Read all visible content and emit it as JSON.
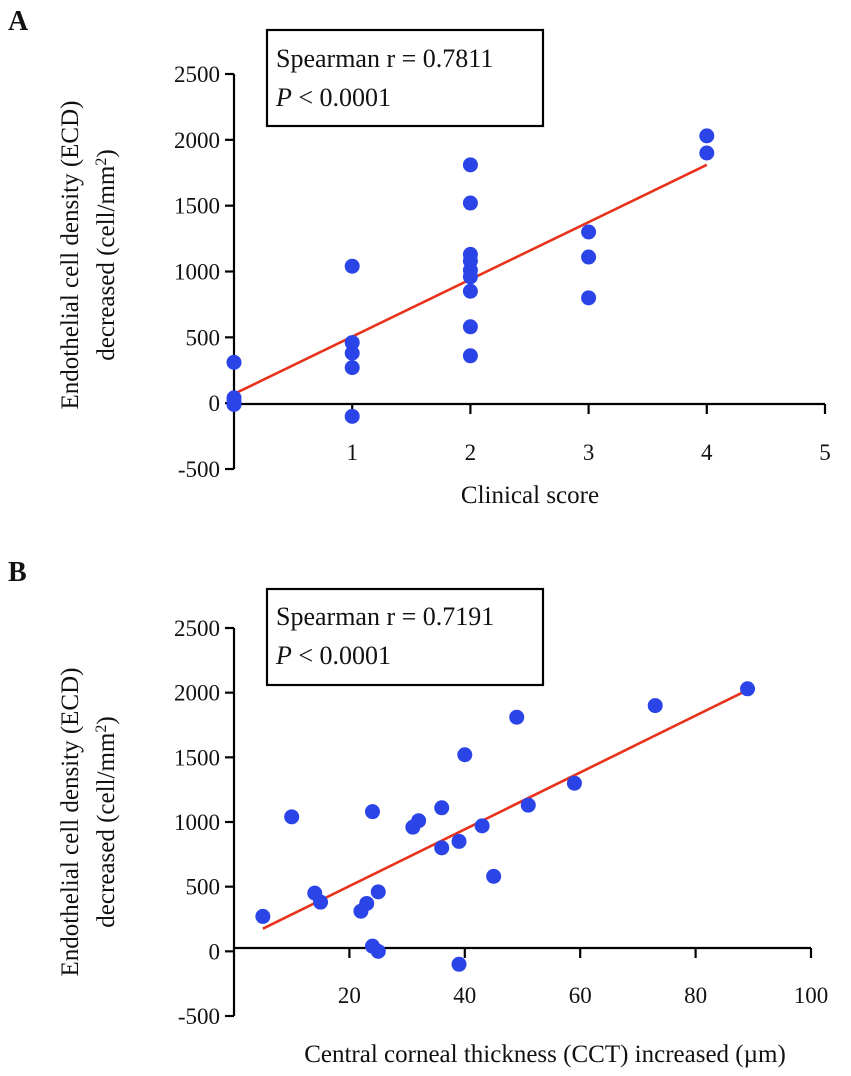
{
  "chart_data": [
    {
      "type": "scatter",
      "panel_label": "A",
      "title": "",
      "xlabel": "Clinical score",
      "ylabel_line1": "Endothelial cell density (ECD)",
      "ylabel_line2_prefix": "decreased (cell/mm",
      "ylabel_line2_sup": "2",
      "ylabel_line2_suffix": ")",
      "xlim": [
        0,
        5
      ],
      "ylim": [
        -500,
        2500
      ],
      "xticks": [
        1,
        2,
        3,
        4,
        5
      ],
      "yticks": [
        -500,
        0,
        500,
        1000,
        1500,
        2000,
        2500
      ],
      "xtick_labels": [
        "1",
        "2",
        "3",
        "4",
        "5"
      ],
      "ytick_labels": [
        "-500",
        "0",
        "500",
        "1000",
        "1500",
        "2000",
        "2500"
      ],
      "grid": false,
      "annotation": {
        "line1": "Spearman r = 0.7811",
        "p_symbol": "P",
        "p_rest": " < 0.0001",
        "placement": "top-left"
      },
      "points": [
        {
          "x": 0,
          "y": 310
        },
        {
          "x": 0,
          "y": 40
        },
        {
          "x": 0,
          "y": 10
        },
        {
          "x": 0,
          "y": -10
        },
        {
          "x": 1,
          "y": 1040
        },
        {
          "x": 1,
          "y": 460
        },
        {
          "x": 1,
          "y": 380
        },
        {
          "x": 1,
          "y": 270
        },
        {
          "x": 1,
          "y": -100
        },
        {
          "x": 2,
          "y": 1810
        },
        {
          "x": 2,
          "y": 1520
        },
        {
          "x": 2,
          "y": 1130
        },
        {
          "x": 2,
          "y": 1080
        },
        {
          "x": 2,
          "y": 1010
        },
        {
          "x": 2,
          "y": 960
        },
        {
          "x": 2,
          "y": 850
        },
        {
          "x": 2,
          "y": 580
        },
        {
          "x": 2,
          "y": 360
        },
        {
          "x": 3,
          "y": 1300
        },
        {
          "x": 3,
          "y": 1110
        },
        {
          "x": 3,
          "y": 800
        },
        {
          "x": 4,
          "y": 2030
        },
        {
          "x": 4,
          "y": 1900
        }
      ],
      "fit_line": {
        "x0": 0,
        "y0": 70,
        "x1": 4,
        "y1": 1810
      }
    },
    {
      "type": "scatter",
      "panel_label": "B",
      "title": "",
      "xlabel": "Central corneal thickness (CCT) increased (µm)",
      "ylabel_line1": "Endothelial cell density (ECD)",
      "ylabel_line2_prefix": "decreased (cell/mm",
      "ylabel_line2_sup": "2",
      "ylabel_line2_suffix": ")",
      "xlim": [
        0,
        100
      ],
      "ylim": [
        -500,
        2500
      ],
      "xticks": [
        20,
        40,
        60,
        80,
        100
      ],
      "yticks": [
        -500,
        0,
        500,
        1000,
        1500,
        2000,
        2500
      ],
      "xtick_labels": [
        "20",
        "40",
        "60",
        "80",
        "100"
      ],
      "ytick_labels": [
        "-500",
        "0",
        "500",
        "1000",
        "1500",
        "2000",
        "2500"
      ],
      "grid": false,
      "annotation": {
        "line1": "Spearman r = 0.7191",
        "p_symbol": "P",
        "p_rest": " < 0.0001",
        "placement": "top-left"
      },
      "points": [
        {
          "x": 5,
          "y": 270
        },
        {
          "x": 10,
          "y": 1040
        },
        {
          "x": 14,
          "y": 450
        },
        {
          "x": 15,
          "y": 380
        },
        {
          "x": 22,
          "y": 310
        },
        {
          "x": 23,
          "y": 370
        },
        {
          "x": 24,
          "y": 1080
        },
        {
          "x": 24,
          "y": 40
        },
        {
          "x": 25,
          "y": 460
        },
        {
          "x": 25,
          "y": 0
        },
        {
          "x": 31,
          "y": 960
        },
        {
          "x": 32,
          "y": 1010
        },
        {
          "x": 36,
          "y": 1110
        },
        {
          "x": 36,
          "y": 800
        },
        {
          "x": 39,
          "y": 850
        },
        {
          "x": 39,
          "y": -100
        },
        {
          "x": 40,
          "y": 1520
        },
        {
          "x": 43,
          "y": 970
        },
        {
          "x": 45,
          "y": 580
        },
        {
          "x": 49,
          "y": 1810
        },
        {
          "x": 51,
          "y": 1130
        },
        {
          "x": 59,
          "y": 1300
        },
        {
          "x": 73,
          "y": 1900
        },
        {
          "x": 89,
          "y": 2030
        }
      ],
      "fit_line": {
        "x0": 5,
        "y0": 175,
        "x1": 89,
        "y1": 2020
      }
    }
  ],
  "colors": {
    "points": "#2b44e8",
    "fit_line": "#e8331c",
    "axes": "#000000"
  }
}
